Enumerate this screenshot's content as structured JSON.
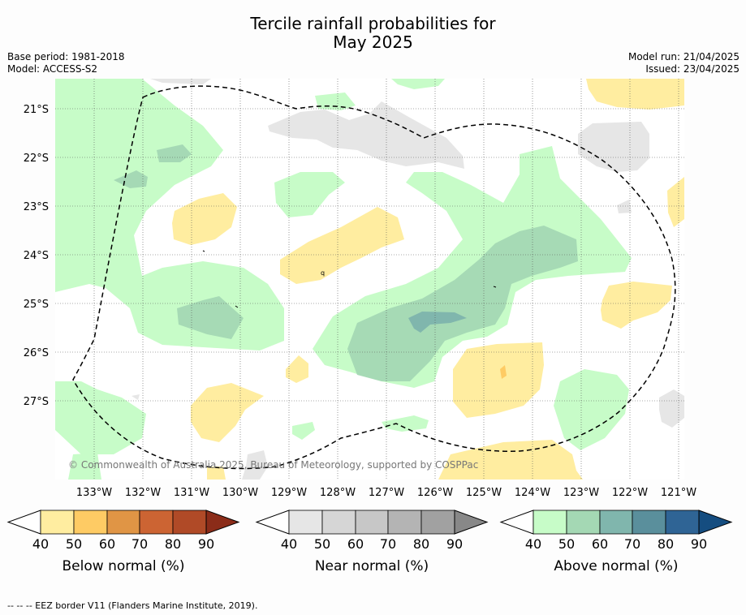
{
  "title_line1": "Tercile rainfall probabilities for",
  "title_line2": "May 2025",
  "base_period": "Base period: 1981-2018",
  "model": "Model: ACCESS-S2",
  "model_run": "Model run: 21/04/2025",
  "issued": "Issued: 23/04/2025",
  "copyright": "© Commonwealth of Australia 2025, Bureau of Meteorology, supported by COSPPac",
  "footnote": "--  --  -- EEZ border V11 (Flanders Marine Institute, 2019).",
  "map": {
    "lat_labels": [
      "21°S",
      "22°S",
      "23°S",
      "24°S",
      "25°S",
      "26°S",
      "27°S"
    ],
    "lon_labels": [
      "133°W",
      "132°W",
      "131°W",
      "130°W",
      "129°W",
      "128°W",
      "127°W",
      "126°W",
      "125°W",
      "124°W",
      "123°W",
      "122°W",
      "121°W"
    ],
    "markers": [
      "q"
    ]
  },
  "colorbars": [
    {
      "title": "Below normal (%)",
      "ticks": [
        "40",
        "50",
        "60",
        "70",
        "80",
        "90"
      ],
      "colors": [
        "#ffeda0",
        "#fecb64",
        "#e09545",
        "#cc6433",
        "#b04a27",
        "#8b2c19"
      ]
    },
    {
      "title": "Near normal (%)",
      "ticks": [
        "40",
        "50",
        "60",
        "70",
        "80",
        "90"
      ],
      "colors": [
        "#e6e6e6",
        "#d6d6d6",
        "#c7c7c7",
        "#b4b4b4",
        "#a1a1a1",
        "#888888"
      ]
    },
    {
      "title": "Above normal (%)",
      "ticks": [
        "40",
        "50",
        "60",
        "70",
        "80",
        "90"
      ],
      "colors": [
        "#c7fcc8",
        "#a4d8b4",
        "#80b6ad",
        "#5a8f9c",
        "#2f6495",
        "#154d80"
      ]
    }
  ]
}
